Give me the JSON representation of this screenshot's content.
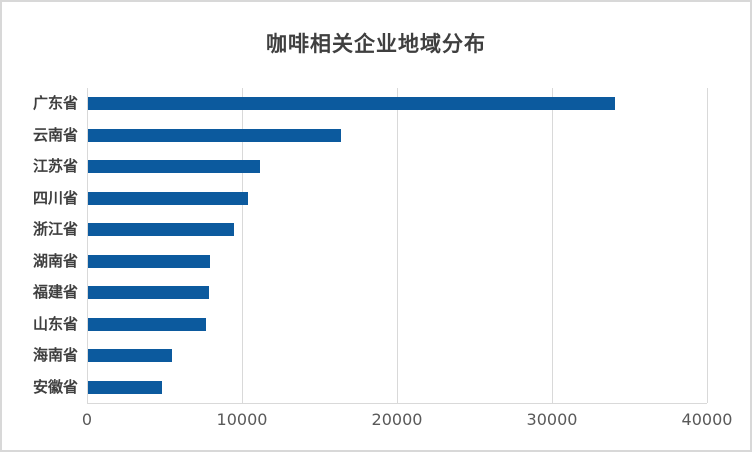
{
  "colors": {
    "bar": "#0c5a9e",
    "gridline": "#d9d9d9",
    "frame_border": "#d8d8d8",
    "tick_text": "#595959",
    "category_text": "#3f3f3f",
    "title_text": "#3f3f3f",
    "background": "#ffffff"
  },
  "chart_data": {
    "type": "bar",
    "orientation": "horizontal",
    "title": "咖啡相关企业地域分布",
    "categories": [
      "广东省",
      "云南省",
      "江苏省",
      "四川省",
      "浙江省",
      "湖南省",
      "福建省",
      "山东省",
      "海南省",
      "安徽省"
    ],
    "values": [
      34000,
      16300,
      11100,
      10300,
      9400,
      7900,
      7800,
      7600,
      5400,
      4800
    ],
    "xlabel": "",
    "ylabel": "",
    "xlim": [
      0,
      40000
    ],
    "x_ticks": [
      0,
      10000,
      20000,
      30000,
      40000
    ],
    "x_tick_labels": [
      "0",
      "10000",
      "20000",
      "30000",
      "40000"
    ],
    "grid": "vertical-gridlines-on",
    "legend": "none",
    "data_labels": "none"
  }
}
